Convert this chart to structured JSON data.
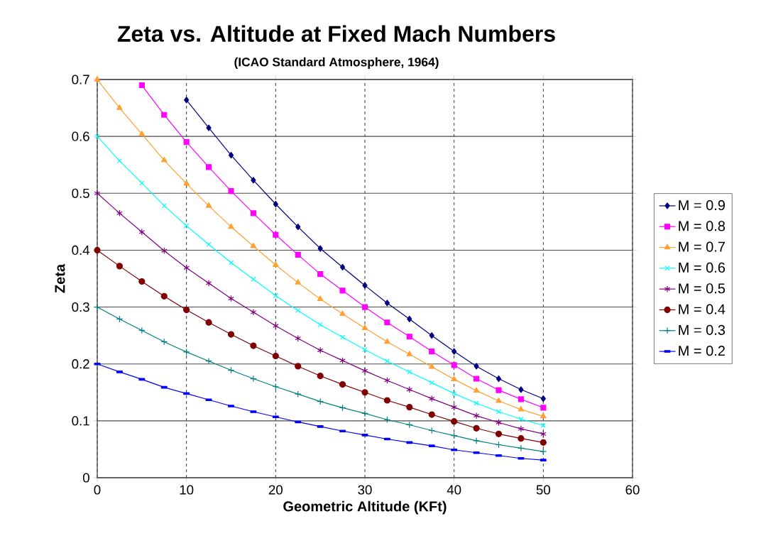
{
  "chart_data": {
    "type": "line",
    "title": "Zeta vs. Altitude at Fixed Mach Numbers",
    "subtitle": "(ICAO Standard Atmosphere, 1964)",
    "xlabel": "Geometric Altitude (KFt)",
    "ylabel": "Zeta",
    "x": [
      0,
      2.5,
      5,
      7.5,
      10,
      12.5,
      15,
      17.5,
      20,
      22.5,
      25,
      27.5,
      30,
      32.5,
      35,
      37.5,
      40,
      42.5,
      45,
      47.5,
      50
    ],
    "series": [
      {
        "name": "M = 0.9",
        "color": "#000080",
        "marker": "diamond",
        "values": [
          null,
          null,
          null,
          null,
          0.664,
          0.615,
          0.567,
          0.523,
          0.481,
          0.441,
          0.403,
          0.37,
          0.338,
          0.307,
          0.279,
          0.25,
          0.222,
          0.196,
          0.174,
          0.155,
          0.139
        ]
      },
      {
        "name": "M = 0.8",
        "color": "#ff00ff",
        "marker": "square",
        "values": [
          null,
          null,
          0.69,
          0.638,
          0.59,
          0.546,
          0.504,
          0.465,
          0.427,
          0.392,
          0.358,
          0.329,
          0.3,
          0.273,
          0.248,
          0.222,
          0.198,
          0.174,
          0.154,
          0.138,
          0.123
        ]
      },
      {
        "name": "M = 0.7",
        "color": "#ffa030",
        "marker": "triangle",
        "values": [
          0.7,
          0.65,
          0.604,
          0.558,
          0.517,
          0.478,
          0.441,
          0.407,
          0.374,
          0.343,
          0.314,
          0.288,
          0.263,
          0.239,
          0.217,
          0.195,
          0.173,
          0.153,
          0.135,
          0.12,
          0.108
        ]
      },
      {
        "name": "M = 0.6",
        "color": "#00ffff",
        "marker": "cross",
        "values": [
          0.6,
          0.557,
          0.518,
          0.478,
          0.443,
          0.41,
          0.378,
          0.349,
          0.32,
          0.294,
          0.269,
          0.247,
          0.225,
          0.205,
          0.186,
          0.167,
          0.148,
          0.131,
          0.116,
          0.103,
          0.092
        ]
      },
      {
        "name": "M = 0.5",
        "color": "#800080",
        "marker": "cross",
        "values": [
          0.5,
          0.465,
          0.432,
          0.399,
          0.369,
          0.342,
          0.315,
          0.291,
          0.267,
          0.245,
          0.224,
          0.206,
          0.188,
          0.171,
          0.155,
          0.139,
          0.124,
          0.109,
          0.097,
          0.086,
          0.077
        ]
      },
      {
        "name": "M = 0.4",
        "color": "#800000",
        "marker": "circle",
        "values": [
          0.4,
          0.372,
          0.345,
          0.319,
          0.295,
          0.273,
          0.252,
          0.232,
          0.214,
          0.196,
          0.179,
          0.164,
          0.15,
          0.136,
          0.124,
          0.111,
          0.099,
          0.087,
          0.077,
          0.069,
          0.062
        ]
      },
      {
        "name": "M = 0.3",
        "color": "#008080",
        "marker": "plus",
        "values": [
          0.3,
          0.279,
          0.259,
          0.239,
          0.221,
          0.205,
          0.189,
          0.174,
          0.16,
          0.147,
          0.134,
          0.123,
          0.113,
          0.102,
          0.093,
          0.083,
          0.074,
          0.065,
          0.058,
          0.052,
          0.046
        ]
      },
      {
        "name": "M = 0.2",
        "color": "#0000ff",
        "marker": "square",
        "values": [
          0.2,
          0.186,
          0.173,
          0.159,
          0.148,
          0.137,
          0.126,
          0.116,
          0.107,
          0.098,
          0.09,
          0.082,
          0.075,
          0.068,
          0.062,
          0.056,
          0.049,
          0.044,
          0.039,
          0.034,
          0.031
        ]
      }
    ],
    "xlim": [
      0,
      60
    ],
    "xticks": [
      0,
      10,
      20,
      30,
      40,
      50,
      60
    ],
    "ylim": [
      0,
      0.7
    ],
    "yticks": [
      0,
      0.1,
      0.2,
      0.3,
      0.4,
      0.5,
      0.6,
      0.7
    ],
    "grid": true,
    "legend": "right",
    "line_style": "solid"
  }
}
